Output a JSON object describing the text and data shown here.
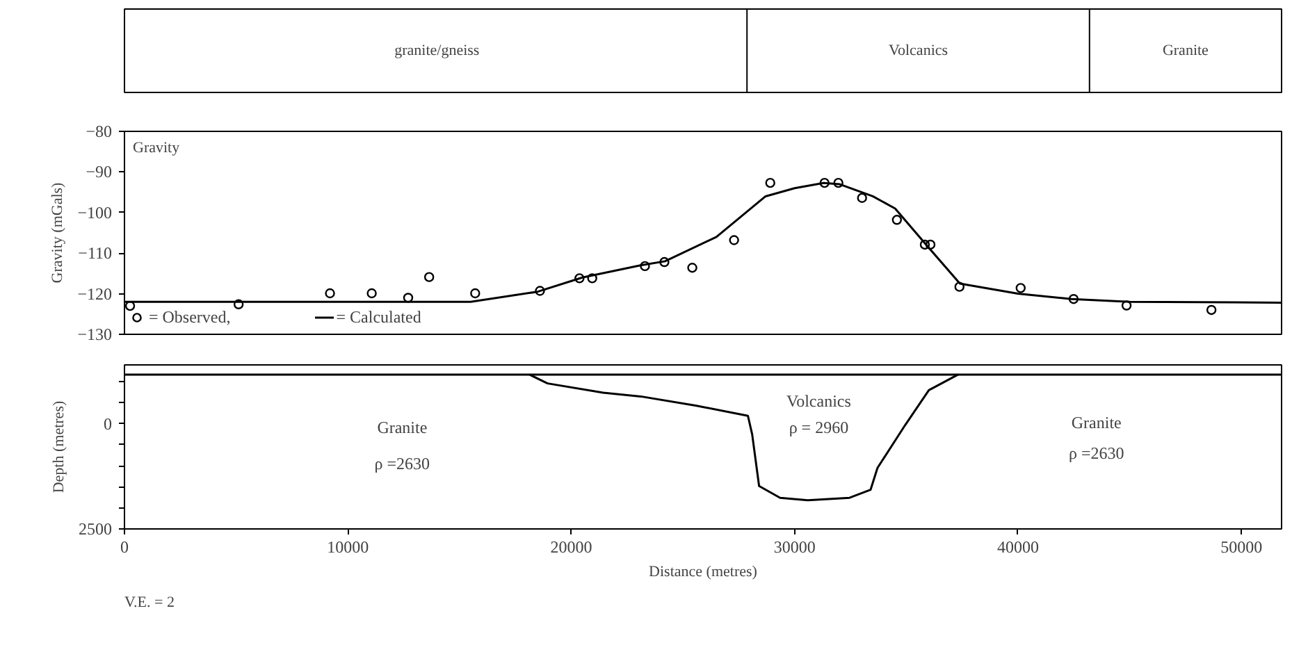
{
  "chart_data": [
    {
      "type": "other",
      "annotations": [
        "granite/gneiss",
        "Volcanics",
        "Granite"
      ]
    },
    {
      "type": "line",
      "title": "Gravity",
      "ylabel": "Gravity (mGals)",
      "xlim": [
        0,
        51800
      ],
      "ylim": [
        -130,
        -80
      ],
      "yticks": [
        -130,
        -120,
        -110,
        -100,
        -90,
        -80
      ],
      "tick_labels": "y",
      "grid": false,
      "legend": "bottom left",
      "series": [
        {
          "name": "= Observed,",
          "type": "scatter",
          "marker": "circle",
          "color": "#000000",
          "x": [
            250,
            5110,
            9200,
            11070,
            12700,
            13640,
            15700,
            18600,
            20370,
            20940,
            23300,
            24170,
            25420,
            27290,
            28910,
            31340,
            31960,
            33020,
            34580,
            35830,
            36080,
            37380,
            40120,
            42490,
            44860,
            48660
          ],
          "values": [
            -123,
            -122.6,
            -119.9,
            -119.9,
            -121,
            -115.9,
            -119.9,
            -119.3,
            -116.2,
            -116.2,
            -113.2,
            -112.2,
            -113.6,
            -106.8,
            -92.7,
            -92.7,
            -92.7,
            -96.4,
            -101.8,
            -107.9,
            -107.9,
            -118.3,
            -118.6,
            -121.3,
            -122.9,
            -124
          ]
        },
        {
          "name": "= Calculated",
          "type": "line",
          "marker": "none",
          "line_style": "solid",
          "color": "#000000",
          "x": [
            0,
            15500,
            18500,
            20500,
            23100,
            24200,
            26500,
            28700,
            30000,
            31300,
            32000,
            33500,
            34500,
            35900,
            37400,
            40000,
            42400,
            45000,
            51800
          ],
          "values": [
            -122,
            -122,
            -119.5,
            -116,
            -113,
            -112,
            -106,
            -96,
            -94,
            -92.7,
            -93,
            -96,
            -99,
            -108,
            -117.5,
            -120,
            -121.3,
            -122,
            -122.2
          ]
        }
      ]
    },
    {
      "type": "line",
      "xlabel": "Distance (metres)",
      "ylabel": "Depth (metres)",
      "xlim": [
        0,
        51800
      ],
      "ylim": [
        2500,
        -1400
      ],
      "xticks": [
        0,
        10000,
        20000,
        30000,
        40000,
        50000
      ],
      "yticks": [
        {
          "value": -1000,
          "label": null
        },
        {
          "value": -500,
          "label": null
        },
        0,
        {
          "value": 500,
          "label": null
        },
        {
          "value": 1000,
          "label": null
        },
        {
          "value": 1500,
          "label": null
        },
        {
          "value": 2000,
          "label": null
        },
        2500
      ],
      "grid": false,
      "series": [
        {
          "type": "line",
          "color": "#000000",
          "x": [
            0,
            51800
          ],
          "values": [
            -1170,
            -1170
          ]
        },
        {
          "type": "line",
          "color": "#000000",
          "x": [
            18130,
            18940,
            21430,
            23115,
            25610,
            27910,
            28100,
            28410,
            29350,
            30590,
            32460,
            33400,
            33710,
            34950,
            36010,
            37320
          ],
          "values": [
            -1170,
            -960,
            -740,
            -650,
            -430,
            -190,
            250,
            1480,
            1760,
            1820,
            1760,
            1570,
            1050,
            30,
            -800,
            -1170
          ]
        }
      ],
      "annotations": [
        "Granite",
        "ρ =2630",
        "Volcanics",
        "ρ = 2960",
        "Granite",
        "ρ =2630",
        "V.E. = 2"
      ]
    }
  ]
}
